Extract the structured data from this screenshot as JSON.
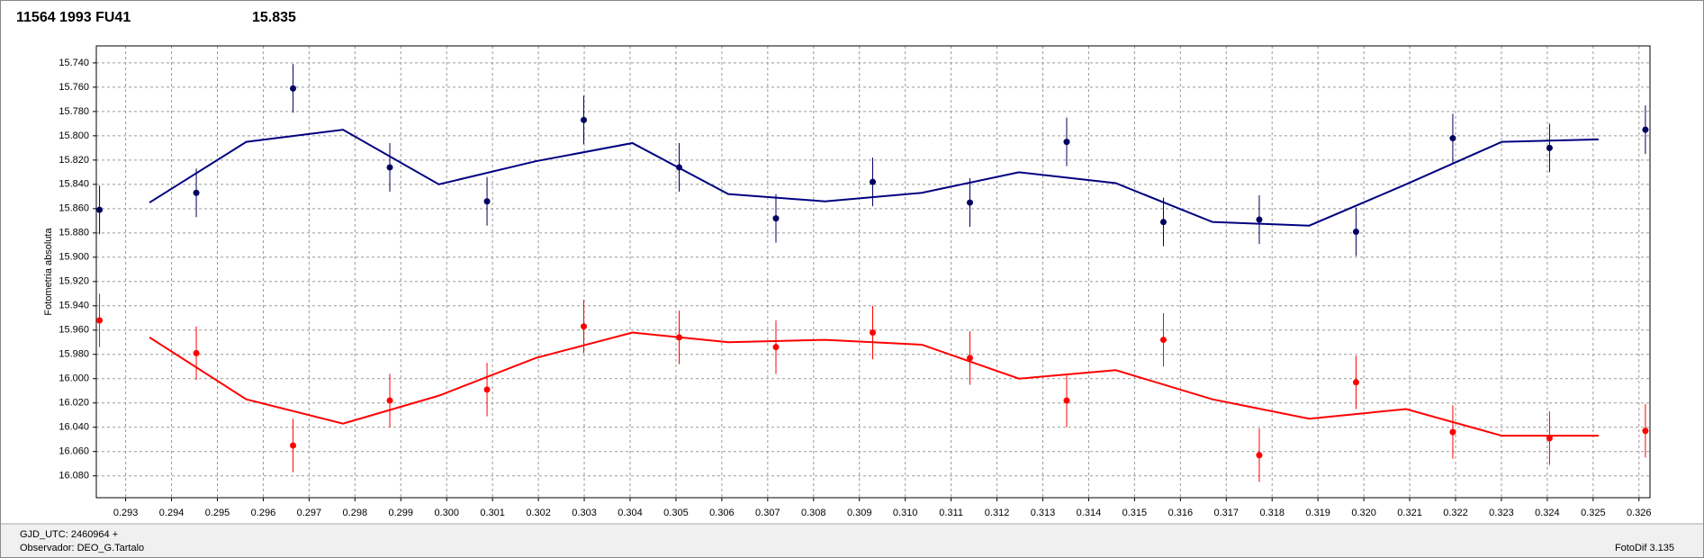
{
  "chart_data": {
    "type": "scatter",
    "title": "11564 1993 FU41",
    "subtitle": "15.835",
    "title_color": "#ff0000",
    "subtitle_color": "#000080",
    "y_label": "Fotometria absoluta",
    "footer": [
      "GJD_UTC: 2460964 +",
      "Observador: DEO_G.Tartalo"
    ],
    "footer_right": "FotoDif 3.135",
    "y_inverted": true,
    "grid": true,
    "xlim": [
      0.29236,
      0.32624
    ],
    "ylim": [
      15.726,
      16.098
    ],
    "xticks": [
      0.293,
      0.294,
      0.295,
      0.296,
      0.297,
      0.298,
      0.299,
      {
        "value": 0.3,
        "label": "0.300"
      },
      0.301,
      0.302,
      0.303,
      0.304,
      0.305,
      0.306,
      0.307,
      0.308,
      0.309,
      {
        "value": 0.31,
        "label": "0.310"
      },
      0.311,
      0.312,
      0.313,
      0.314,
      0.315,
      0.316,
      0.317,
      0.318,
      0.319,
      {
        "value": 0.32,
        "label": "0.320"
      },
      0.321,
      0.322,
      0.323,
      0.324,
      0.325,
      0.326
    ],
    "yticks": [
      {
        "value": 15.74,
        "label": "15.740"
      },
      {
        "value": 15.76,
        "label": "15.760"
      },
      {
        "value": 15.78,
        "label": "15.780"
      },
      {
        "value": 15.8,
        "label": "15.800"
      },
      {
        "value": 15.82,
        "label": "15.820"
      },
      {
        "value": 15.84,
        "label": "15.840"
      },
      {
        "value": 15.86,
        "label": "15.860"
      },
      {
        "value": 15.88,
        "label": "15.880"
      },
      {
        "value": 15.9,
        "label": "15.900"
      },
      {
        "value": 15.92,
        "label": "15.920"
      },
      {
        "value": 15.94,
        "label": "15.940"
      },
      {
        "value": 15.96,
        "label": "15.960"
      },
      {
        "value": 15.98,
        "label": "15.980"
      },
      {
        "value": 16.0,
        "label": "16.000"
      },
      {
        "value": 16.02,
        "label": "16.020"
      },
      {
        "value": 16.04,
        "label": "16.040"
      },
      {
        "value": 16.06,
        "label": "16.060"
      },
      {
        "value": 16.08,
        "label": "16.080"
      }
    ],
    "series": [
      {
        "kind": "points",
        "color": "#000060",
        "x": [
          0.29243,
          0.29454,
          0.29665,
          0.29876,
          0.30088,
          0.30299,
          0.30507,
          0.30718,
          0.30929,
          0.31141,
          0.31352,
          0.31563,
          0.31772,
          0.31983,
          0.32194,
          0.32405,
          0.32614
        ],
        "values": [
          15.861,
          15.847,
          15.761,
          15.826,
          15.854,
          15.787,
          15.826,
          15.868,
          15.838,
          15.855,
          15.805,
          15.871,
          15.869,
          15.879,
          15.802,
          15.81,
          15.795
        ],
        "errors": [
          0.02,
          0.02,
          0.02,
          0.02,
          0.02,
          0.02,
          0.02,
          0.02,
          0.02,
          0.02,
          0.02,
          0.02,
          0.02,
          0.02,
          0.02,
          0.02,
          0.02
        ]
      },
      {
        "kind": "line",
        "color": "#000080",
        "x": [
          0.29352,
          0.29563,
          0.29774,
          0.29983,
          0.30194,
          0.30405,
          0.30614,
          0.30825,
          0.31036,
          0.31248,
          0.31459,
          0.3167,
          0.31881,
          0.32092,
          0.32301,
          0.32512
        ],
        "values": [
          15.855,
          15.805,
          15.795,
          15.84,
          15.821,
          15.806,
          15.848,
          15.854,
          15.847,
          15.83,
          15.839,
          15.871,
          15.874,
          15.84,
          15.805,
          15.803
        ]
      },
      {
        "kind": "points",
        "color": "#ff0000",
        "x": [
          0.29243,
          0.29454,
          0.29665,
          0.29876,
          0.30088,
          0.30299,
          0.30507,
          0.30718,
          0.30929,
          0.31141,
          0.31352,
          0.31563,
          0.31772,
          0.31983,
          0.32194,
          0.32405,
          0.32614
        ],
        "values": [
          15.952,
          15.979,
          16.055,
          16.018,
          16.009,
          15.957,
          15.966,
          15.974,
          15.962,
          15.983,
          16.018,
          15.968,
          16.063,
          16.003,
          16.044,
          16.049,
          16.043
        ],
        "errors": [
          0.022,
          0.022,
          0.022,
          0.022,
          0.022,
          0.022,
          0.022,
          0.022,
          0.022,
          0.022,
          0.022,
          0.022,
          0.022,
          0.022,
          0.022,
          0.022,
          0.022
        ]
      },
      {
        "kind": "line",
        "color": "#ff0000",
        "x": [
          0.29352,
          0.29563,
          0.29774,
          0.29983,
          0.30194,
          0.30405,
          0.30614,
          0.30825,
          0.31036,
          0.31248,
          0.31459,
          0.3167,
          0.31881,
          0.32092,
          0.32301,
          0.32512
        ],
        "values": [
          15.966,
          16.017,
          16.037,
          16.014,
          15.983,
          15.962,
          15.97,
          15.968,
          15.972,
          16.0,
          15.993,
          16.017,
          16.033,
          16.025,
          16.047,
          16.047
        ]
      }
    ]
  }
}
